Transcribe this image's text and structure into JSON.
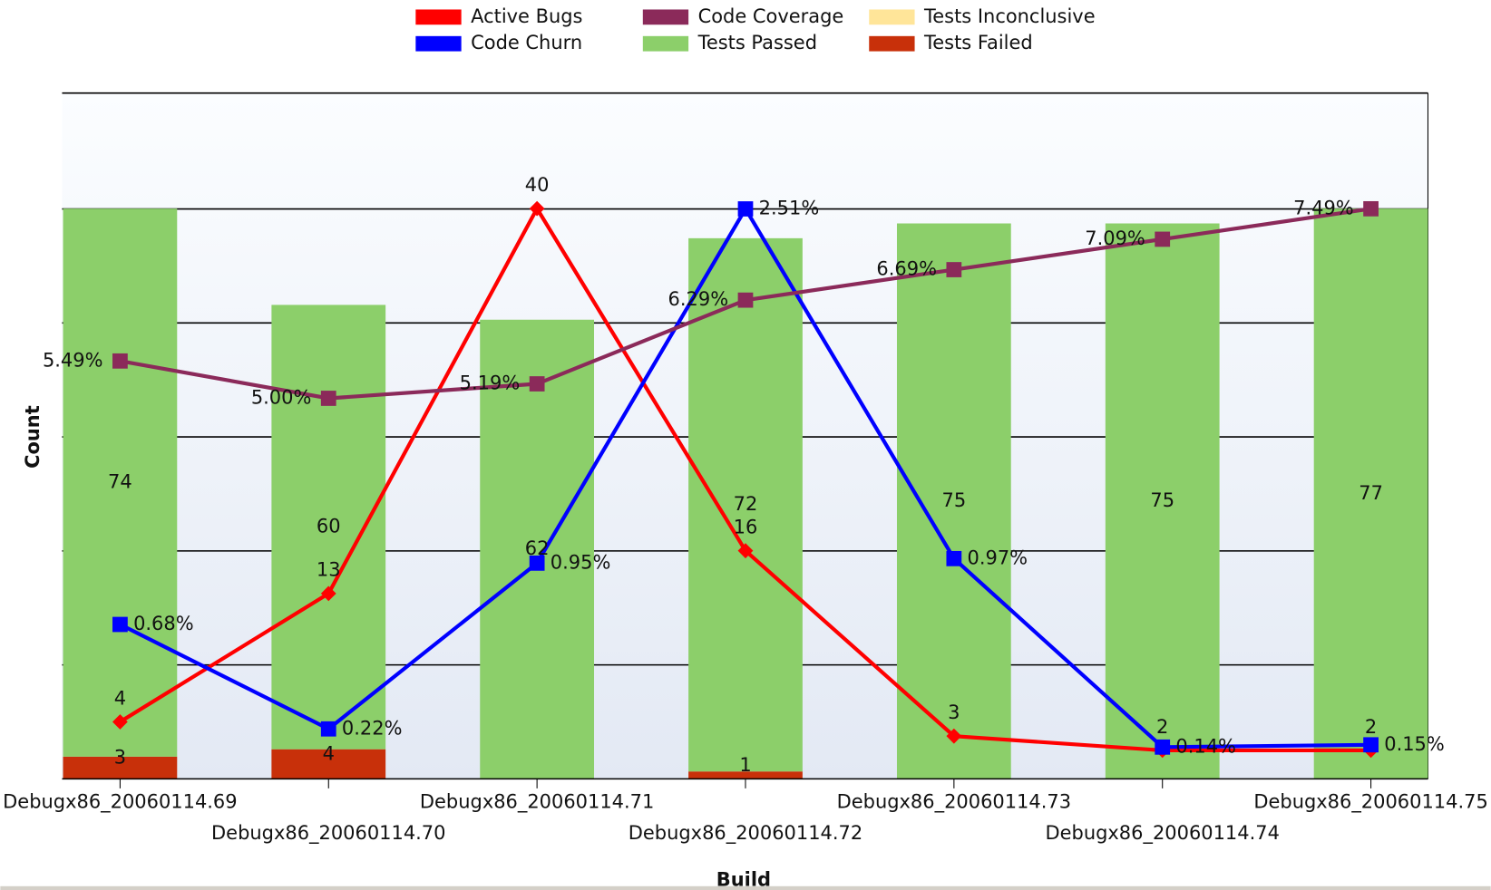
{
  "chart_data": {
    "type": "bar-line",
    "x_label": "Build",
    "y_label": "Count",
    "categories": [
      "Debugx86_20060114.69",
      "Debugx86_20060114.70",
      "Debugx86_20060114.71",
      "Debugx86_20060114.72",
      "Debugx86_20060114.73",
      "Debugx86_20060114.74",
      "Debugx86_20060114.75"
    ],
    "ylim": [
      0,
      92.6
    ],
    "series": [
      {
        "name": "Active Bugs",
        "type": "line",
        "marker": "diamond",
        "color": "#ff0000",
        "ylim": [
          0,
          48.1
        ],
        "values": [
          4,
          13,
          40,
          16,
          3,
          2,
          2
        ]
      },
      {
        "name": "Code Churn",
        "type": "line",
        "marker": "square",
        "color": "#0000ff",
        "ylim": [
          0,
          3.02
        ],
        "values": [
          0.68,
          0.22,
          0.95,
          2.51,
          0.97,
          0.14,
          0.15
        ],
        "value_labels": [
          "0.68%",
          "0.22%",
          "0.95%",
          "2.51%",
          "0.97%",
          "0.14%",
          "0.15%"
        ]
      },
      {
        "name": "Code Coverage",
        "type": "line",
        "marker": "square",
        "color": "#8b2a5a",
        "ylim": [
          0,
          9.01
        ],
        "values": [
          5.49,
          5.0,
          5.19,
          6.29,
          6.69,
          7.09,
          7.49
        ],
        "value_labels": [
          "5.49%",
          "5.00%",
          "5.19%",
          "6.29%",
          "6.69%",
          "7.09%",
          "7.49%"
        ]
      },
      {
        "name": "Tests Passed",
        "type": "bar",
        "color": "#8ccf6a",
        "values": [
          74,
          60,
          62,
          72,
          75,
          75,
          77
        ]
      },
      {
        "name": "Tests Inconclusive",
        "type": "bar",
        "color": "#ffe599",
        "values": [
          null,
          null,
          null,
          null,
          null,
          null,
          null
        ]
      },
      {
        "name": "Tests Failed",
        "type": "bar",
        "color": "#c8300a",
        "values": [
          3,
          4,
          null,
          1,
          null,
          null,
          null
        ]
      }
    ]
  }
}
